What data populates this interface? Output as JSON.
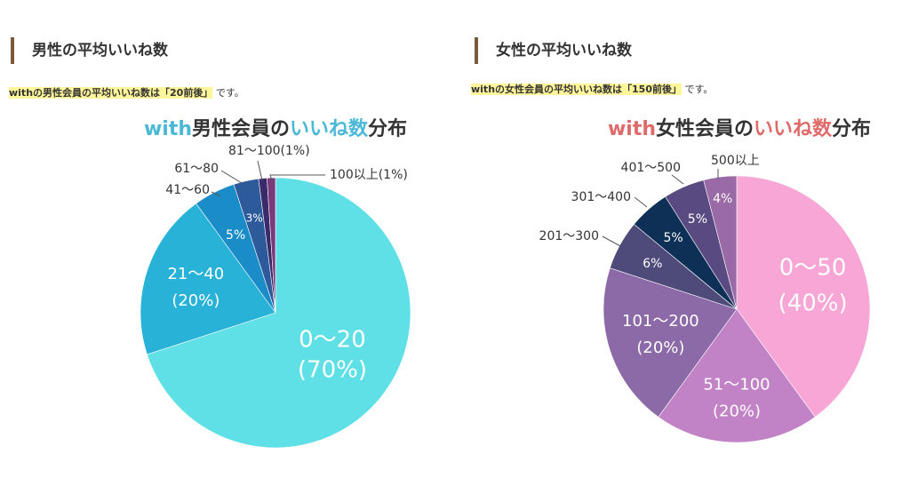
{
  "male": {
    "heading": "男性の平均いいね数",
    "note_highlight": "withの男性会員の平均いいね数は「20前後」",
    "note_suffix": "です。",
    "chart_title": {
      "part1": "with",
      "part2": "男性会員の",
      "part3": "いいね数",
      "part4": "分布"
    }
  },
  "female": {
    "heading": "女性の平均いいね数",
    "note_highlight": "withの女性会員の平均いいね数は「150前後」",
    "note_suffix": "です。",
    "chart_title": {
      "part1": "with",
      "part2": "女性会員の",
      "part3": "いいね数",
      "part4": "分布"
    }
  },
  "colors": {
    "heading_bar": "#7a5a3a",
    "highlight": "#fff59a",
    "male_title_accent": "#4bb8d8",
    "female_title_accent": "#e06a6a",
    "title_dark": "#333333"
  },
  "chart_data": [
    {
      "type": "pie",
      "title": "with男性会員のいいね数分布",
      "categories": [
        "0〜20",
        "21〜40",
        "41〜60",
        "61〜80",
        "81〜100",
        "100以上"
      ],
      "values": [
        70,
        20,
        5,
        3,
        1,
        1
      ],
      "slice_labels": [
        "0〜20\n(70%)",
        "21〜40\n(20%)",
        "5%",
        "3%",
        "",
        ""
      ],
      "callout_labels": [
        "",
        "",
        "41〜60",
        "61〜80",
        "81〜100(1%)",
        "100以上(1%)"
      ],
      "colors": [
        "#5ee0e6",
        "#29b2d8",
        "#1a8cc8",
        "#2d5a9a",
        "#3a2a6a",
        "#7a3a7a"
      ],
      "start": "12 o'clock, clockwise"
    },
    {
      "type": "pie",
      "title": "with女性会員のいいね数分布",
      "categories": [
        "0〜50",
        "51〜100",
        "101〜200",
        "201〜300",
        "301〜400",
        "401〜500",
        "500以上"
      ],
      "values": [
        40,
        20,
        20,
        6,
        5,
        5,
        4
      ],
      "slice_labels": [
        "0〜50\n(40%)",
        "51〜100\n(20%)",
        "101〜200\n(20%)",
        "6%",
        "5%",
        "5%",
        "4%"
      ],
      "callout_labels": [
        "",
        "",
        "",
        "201〜300",
        "301〜400",
        "401〜500",
        "500以上"
      ],
      "colors": [
        "#f7a6d6",
        "#c283c6",
        "#8c6aa8",
        "#4e4a7a",
        "#0e2f56",
        "#5a4a82",
        "#9a6aa6"
      ],
      "start": "12 o'clock, clockwise"
    }
  ]
}
